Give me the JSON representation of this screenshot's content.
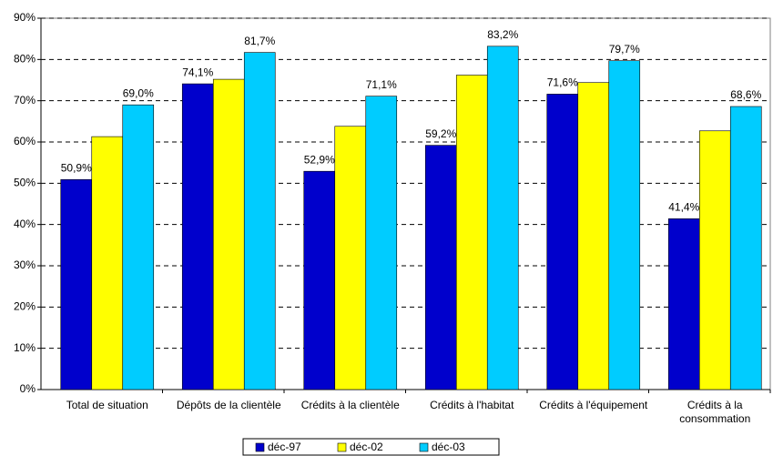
{
  "chart_data": {
    "type": "bar",
    "categories": [
      "Total de situation",
      "Dépôts de la clientèle",
      "Crédits à la clientèle",
      "Crédits à l'habitat",
      "Crédits à l'équipement",
      "Crédits à la consommation"
    ],
    "series": [
      {
        "name": "déc-97",
        "color": "#0000cc",
        "values": [
          50.9,
          74.1,
          52.9,
          59.2,
          71.6,
          41.4
        ],
        "value_labels": [
          "50,9%",
          "74,1%",
          "52,9%",
          "59,2%",
          "71,6%",
          "41,4%"
        ]
      },
      {
        "name": "déc-02",
        "color": "#ffff00",
        "values": [
          61.3,
          75.2,
          63.8,
          76.2,
          74.4,
          62.7
        ]
      },
      {
        "name": "déc-03",
        "color": "#00ccff",
        "values": [
          69.0,
          81.7,
          71.1,
          83.2,
          79.7,
          68.6
        ],
        "value_labels": [
          "69,0%",
          "81,7%",
          "71,1%",
          "83,2%",
          "79,7%",
          "68,6%"
        ]
      }
    ],
    "ylim": [
      0,
      90
    ],
    "yticks": [
      {
        "value": 0,
        "label": "0%"
      },
      {
        "value": 10,
        "label": "10%"
      },
      {
        "value": 20,
        "label": "20%"
      },
      {
        "value": 30,
        "label": "30%"
      },
      {
        "value": 40,
        "label": "40%"
      },
      {
        "value": 50,
        "label": "50%"
      },
      {
        "value": 60,
        "label": "60%"
      },
      {
        "value": 70,
        "label": "70%"
      },
      {
        "value": 80,
        "label": "80%"
      },
      {
        "value": 90,
        "label": "90%"
      }
    ],
    "grid": true,
    "legend": "bottom"
  }
}
